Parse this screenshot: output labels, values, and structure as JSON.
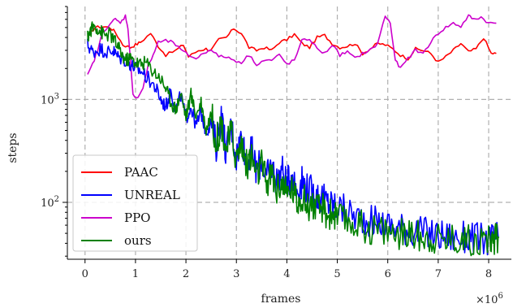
{
  "chart_data": {
    "type": "line",
    "xlabel": "frames",
    "ylabel": "steps",
    "x_multiplier_label": "×10",
    "x_multiplier_exponent": "6",
    "xlim": [
      -0.35,
      8.45
    ],
    "ylim": [
      28,
      8000
    ],
    "yscale": "log",
    "x_ticks": [
      0,
      1,
      2,
      3,
      4,
      5,
      6,
      7,
      8
    ],
    "x_tick_labels": [
      "0",
      "1",
      "2",
      "3",
      "4",
      "5",
      "6",
      "7",
      "8"
    ],
    "y_major_ticks": [
      100,
      1000
    ],
    "y_tick_labels": [
      {
        "base": "10",
        "exp": "2"
      },
      {
        "base": "10",
        "exp": "3"
      }
    ],
    "grid": true,
    "legend_position": "lower-left",
    "series": [
      {
        "name": "PAAC",
        "color": "#ff0000",
        "x": [
          0.08,
          0.2,
          0.35,
          0.5,
          0.6,
          0.75,
          0.9,
          1.0,
          1.1,
          1.3,
          1.45,
          1.6,
          1.8,
          1.95,
          2.05,
          2.25,
          2.4,
          2.5,
          2.65,
          2.8,
          2.95,
          3.1,
          3.25,
          3.4,
          3.55,
          3.7,
          3.85,
          4.0,
          4.15,
          4.3,
          4.45,
          4.6,
          4.75,
          4.9,
          5.05,
          5.2,
          5.35,
          5.5,
          5.65,
          5.8,
          5.95,
          6.1,
          6.25,
          6.4,
          6.55,
          6.7,
          6.85,
          7.0,
          7.15,
          7.3,
          7.45,
          7.6,
          7.75,
          7.9,
          8.05,
          8.15
        ],
        "values": [
          4300,
          5000,
          5100,
          5000,
          4500,
          3400,
          3200,
          3400,
          3600,
          4400,
          3300,
          2700,
          3000,
          3400,
          2600,
          3000,
          3100,
          3000,
          3800,
          4000,
          4900,
          4400,
          3200,
          3000,
          3200,
          3000,
          3600,
          3800,
          4300,
          3500,
          3200,
          4000,
          4200,
          3500,
          3200,
          3300,
          3500,
          2800,
          3100,
          3500,
          3400,
          3100,
          2700,
          2500,
          3100,
          3000,
          2800,
          2300,
          2600,
          3000,
          3500,
          2900,
          3100,
          4000,
          2800,
          2800
        ]
      },
      {
        "name": "UNREAL",
        "color": "#0000ff",
        "x": [
          0.05,
          0.15,
          0.3,
          0.45,
          0.55,
          0.65,
          0.8,
          0.9,
          1.0,
          1.1,
          1.25,
          1.4,
          1.5,
          1.6,
          1.7,
          1.8,
          1.9,
          2.0,
          2.1,
          2.2,
          2.3,
          2.4,
          2.5,
          2.6,
          2.7,
          2.8,
          2.9,
          3.0,
          3.1,
          3.2,
          3.3,
          3.4,
          3.5,
          3.6,
          3.7,
          3.8,
          3.9,
          4.0,
          4.1,
          4.2,
          4.3,
          4.4,
          4.5,
          4.6,
          4.7,
          4.8,
          4.9,
          5.0,
          5.2,
          5.4,
          5.6,
          5.8,
          6.0,
          6.2,
          6.4,
          6.6,
          6.8,
          7.0,
          7.2,
          7.4,
          7.6,
          7.8,
          8.0,
          8.1,
          8.2
        ],
        "values": [
          3400,
          2900,
          3100,
          2900,
          3000,
          2600,
          2400,
          2200,
          2000,
          1900,
          1600,
          1300,
          1000,
          850,
          1200,
          800,
          1100,
          650,
          850,
          550,
          750,
          480,
          600,
          350,
          700,
          300,
          550,
          280,
          450,
          240,
          320,
          200,
          260,
          170,
          230,
          160,
          210,
          150,
          190,
          130,
          160,
          140,
          125,
          115,
          110,
          100,
          95,
          90,
          80,
          72,
          68,
          64,
          60,
          58,
          55,
          52,
          50,
          48,
          47,
          45,
          46,
          44,
          43,
          45,
          46
        ]
      },
      {
        "name": "PPO",
        "color": "#cc00cc",
        "x": [
          0.05,
          0.15,
          0.25,
          0.35,
          0.5,
          0.6,
          0.7,
          0.8,
          0.85,
          0.95,
          1.05,
          1.15,
          1.25,
          1.35,
          1.45,
          1.6,
          1.75,
          1.9,
          2.05,
          2.2,
          2.35,
          2.5,
          2.65,
          2.8,
          2.95,
          3.1,
          3.25,
          3.4,
          3.55,
          3.7,
          3.85,
          4.0,
          4.15,
          4.3,
          4.45,
          4.6,
          4.75,
          4.9,
          5.05,
          5.2,
          5.35,
          5.5,
          5.65,
          5.8,
          5.95,
          6.05,
          6.15,
          6.25,
          6.4,
          6.55,
          6.7,
          6.85,
          7.0,
          7.15,
          7.3,
          7.45,
          7.6,
          7.7,
          7.85,
          8.0,
          8.15
        ],
        "values": [
          1700,
          2200,
          3000,
          4500,
          5500,
          6000,
          5500,
          6500,
          5000,
          1100,
          1050,
          1300,
          2100,
          2700,
          3600,
          3700,
          3600,
          3000,
          2700,
          2500,
          2800,
          3100,
          2600,
          2600,
          2400,
          2300,
          2700,
          2200,
          2400,
          2400,
          2700,
          2200,
          2400,
          3700,
          3900,
          3100,
          2800,
          3400,
          2700,
          2900,
          2500,
          2800,
          3000,
          3500,
          6500,
          5500,
          2400,
          2000,
          2500,
          3000,
          2800,
          3600,
          4400,
          5000,
          5500,
          5100,
          6500,
          6000,
          6300,
          5500,
          5500
        ]
      },
      {
        "name": "ours",
        "color": "#008000",
        "x": [
          0.05,
          0.12,
          0.2,
          0.3,
          0.4,
          0.5,
          0.6,
          0.7,
          0.8,
          0.9,
          1.0,
          1.1,
          1.2,
          1.35,
          1.5,
          1.6,
          1.7,
          1.8,
          1.9,
          2.0,
          2.1,
          2.2,
          2.3,
          2.4,
          2.5,
          2.6,
          2.7,
          2.8,
          2.9,
          3.0,
          3.1,
          3.2,
          3.3,
          3.4,
          3.5,
          3.6,
          3.7,
          3.8,
          3.9,
          4.0,
          4.1,
          4.2,
          4.3,
          4.4,
          4.5,
          4.6,
          4.7,
          4.8,
          4.9,
          5.0,
          5.2,
          5.4,
          5.6,
          5.8,
          6.0,
          6.2,
          6.4,
          6.6,
          6.8,
          7.0,
          7.2,
          7.4,
          7.6,
          7.8,
          8.0,
          8.1,
          8.2
        ],
        "values": [
          4000,
          4800,
          5200,
          4600,
          4200,
          4300,
          3600,
          2900,
          2400,
          2500,
          2300,
          2200,
          2300,
          1900,
          1600,
          1300,
          950,
          800,
          1150,
          680,
          1100,
          700,
          950,
          500,
          750,
          380,
          600,
          330,
          480,
          260,
          380,
          230,
          280,
          180,
          230,
          150,
          190,
          130,
          160,
          115,
          140,
          100,
          120,
          90,
          100,
          82,
          88,
          75,
          78,
          70,
          64,
          60,
          56,
          54,
          52,
          50,
          49,
          47,
          46,
          45,
          44,
          44,
          43,
          43,
          42,
          44,
          45
        ]
      }
    ]
  }
}
